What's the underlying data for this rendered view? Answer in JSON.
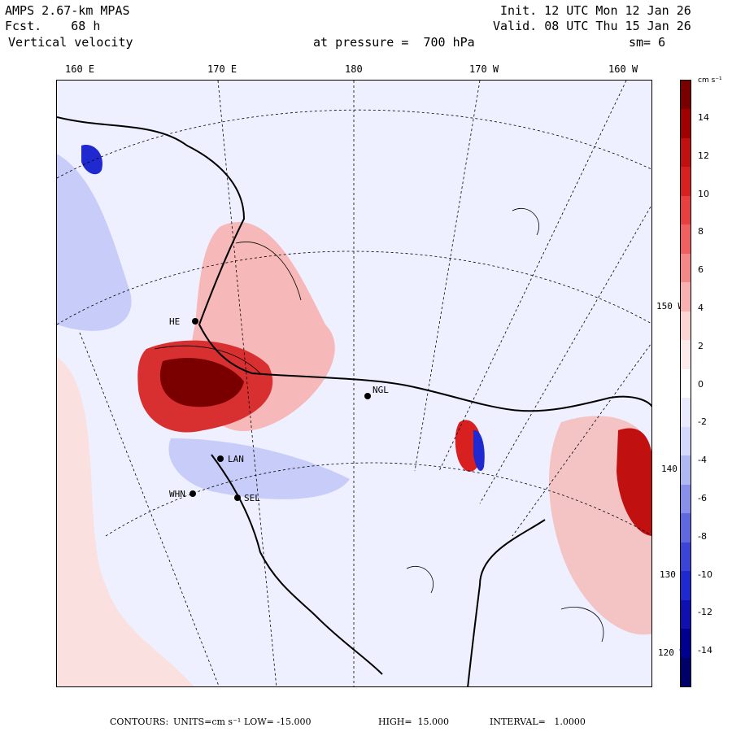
{
  "header": {
    "model": "AMPS 2.67-km MPAS",
    "fcst": "Fcst.    68 h",
    "variable": "Vertical velocity",
    "init": "Init. 12 UTC Mon 12 Jan 26",
    "valid": "Valid. 08 UTC Thu 15 Jan 26",
    "pressure": "at pressure =  700 hPa",
    "smoothing": "sm= 6"
  },
  "longitude_labels": [
    "160 E",
    "170 E",
    "180",
    "170 W",
    "160 W"
  ],
  "latitude_labels": [
    "150 W",
    "140 W",
    "130 W",
    "120 W"
  ],
  "stations": [
    "HE",
    "LAN",
    "WHN",
    "SEL",
    "NGL"
  ],
  "colorbar": {
    "unit": "cm s⁻¹",
    "ticks": [
      "14",
      "12",
      "10",
      "8",
      "6",
      "4",
      "2",
      "0",
      "-2",
      "-4",
      "-6",
      "-8",
      "-10",
      "-12",
      "-14"
    ],
    "colors": [
      "#7a0000",
      "#a00000",
      "#c01010",
      "#d82020",
      "#e84040",
      "#f06060",
      "#f48888",
      "#f8b0b0",
      "#fcd4d4",
      "#fdeaea",
      "#ffffff",
      "#eaeaff",
      "#d4d8fc",
      "#b0b8f4",
      "#8890ea",
      "#6068e0",
      "#3c44d8",
      "#2028d0",
      "#1010b0",
      "#000090",
      "#00006a"
    ]
  },
  "footer": {
    "contours_label": "CONTOURS:",
    "units": "UNITS=cm s⁻¹",
    "low": "LOW= -15.000",
    "high": "HIGH=  15.000",
    "interval": "INTERVAL=   1.0000"
  }
}
